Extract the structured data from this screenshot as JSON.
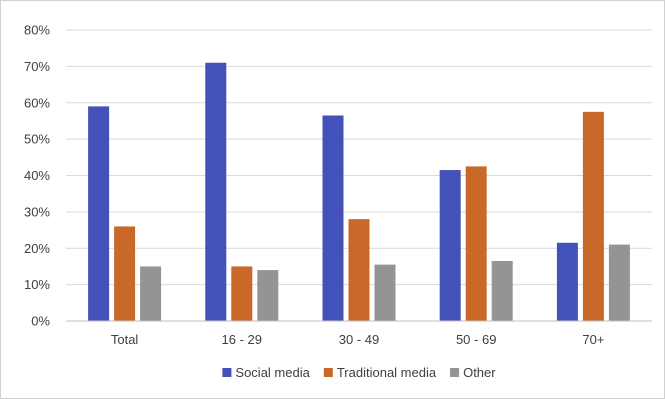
{
  "chart_data": {
    "type": "bar",
    "categories": [
      "Total",
      "16 - 29",
      "30 - 49",
      "50 - 69",
      "70+"
    ],
    "series": [
      {
        "name": "Social media",
        "color": "#4352b8",
        "values": [
          59,
          71,
          56.5,
          41.5,
          21.5
        ]
      },
      {
        "name": "Traditional media",
        "color": "#c8692a",
        "values": [
          26,
          15,
          28,
          42.5,
          57.5
        ]
      },
      {
        "name": "Other",
        "color": "#949494",
        "values": [
          15,
          14,
          15.5,
          16.5,
          21
        ]
      }
    ],
    "ylim": [
      0,
      80
    ],
    "yticks": [
      "0%",
      "10%",
      "20%",
      "30%",
      "40%",
      "50%",
      "60%",
      "70%",
      "80%"
    ],
    "grid": true,
    "legend_position": "bottom"
  }
}
